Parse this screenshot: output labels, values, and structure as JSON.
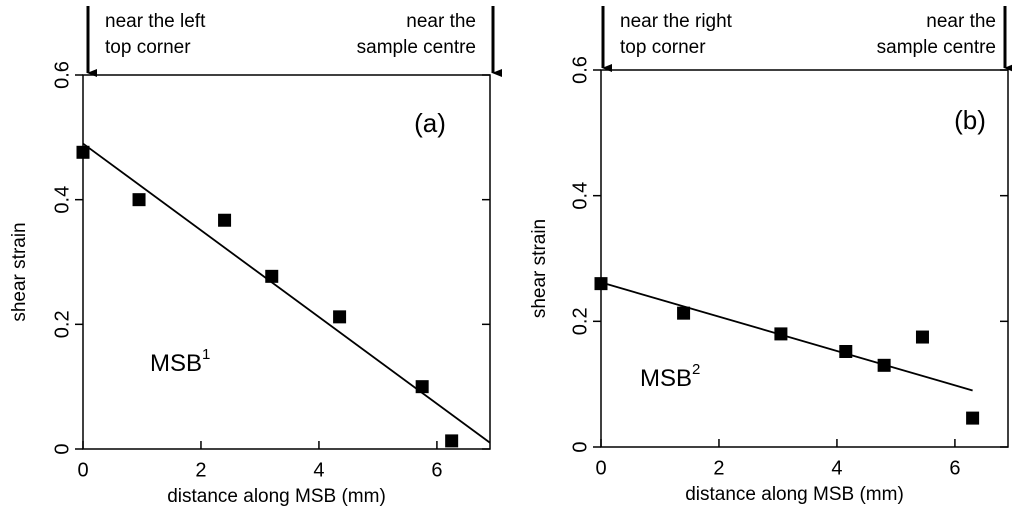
{
  "chart_data": [
    {
      "type": "scatter",
      "title": "(a)",
      "x_label": "distance along MSB (mm)",
      "y_label": "shear strain",
      "x": [
        0,
        0.95,
        2.4,
        3.2,
        4.35,
        5.75,
        6.25
      ],
      "values": [
        0.476,
        0.4,
        0.367,
        0.277,
        0.212,
        0.1,
        0.013
      ],
      "fit_line": {
        "x": [
          0,
          6.9
        ],
        "values": [
          0.49,
          0.01
        ]
      },
      "color": "#000000",
      "xlim": [
        0,
        6.9
      ],
      "ylim": [
        0,
        0.6
      ],
      "xticks": [
        0,
        2,
        4,
        6
      ],
      "yticks": [
        0,
        0.2,
        0.4,
        0.6
      ],
      "label": {
        "text": "MSB",
        "superscript": "1"
      },
      "corner_notes": [
        {
          "lines": [
            "near the left",
            "top corner"
          ]
        },
        {
          "lines": [
            "near the",
            "sample centre"
          ]
        }
      ]
    },
    {
      "type": "scatter",
      "title": "(b)",
      "x_label": "distance along MSB (mm)",
      "y_label": "shear strain",
      "x": [
        0,
        1.4,
        3.05,
        4.15,
        4.8,
        5.45,
        6.3
      ],
      "values": [
        0.26,
        0.213,
        0.18,
        0.152,
        0.13,
        0.175,
        0.046
      ],
      "fit_line": {
        "x": [
          0,
          6.3
        ],
        "values": [
          0.262,
          0.09
        ]
      },
      "color": "#000000",
      "xlim": [
        0,
        6.9
      ],
      "ylim": [
        0,
        0.6
      ],
      "xticks": [
        0,
        2,
        4,
        6
      ],
      "yticks": [
        0,
        0.2,
        0.4,
        0.6
      ],
      "label": {
        "text": "MSB",
        "superscript": "2"
      },
      "corner_notes": [
        {
          "lines": [
            "near the right",
            "top corner"
          ]
        },
        {
          "lines": [
            "near the",
            "sample centre"
          ]
        }
      ]
    }
  ]
}
